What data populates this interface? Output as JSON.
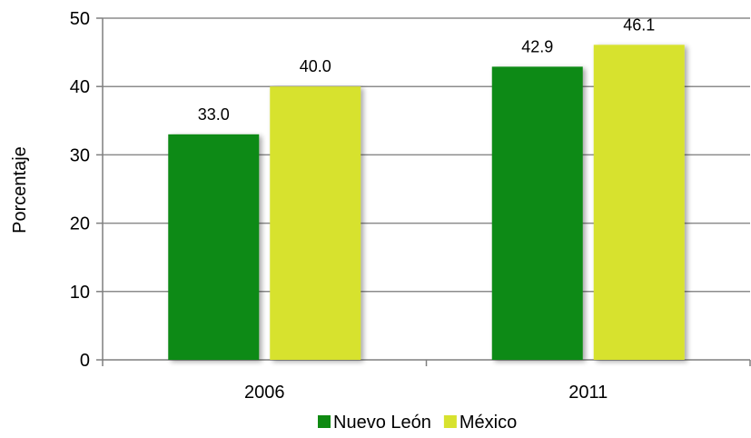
{
  "chart_data": {
    "type": "bar",
    "title": "",
    "xlabel": "",
    "ylabel": "Porcentaje",
    "categories": [
      "2006",
      "2011"
    ],
    "series": [
      {
        "name": "Nuevo León",
        "values": [
          33.0,
          42.9
        ],
        "labels": [
          "33.0",
          "42.9"
        ],
        "color": "#0f8a12"
      },
      {
        "name": "México",
        "values": [
          40.0,
          46.1
        ],
        "labels": [
          "40.0",
          "46.1"
        ],
        "color": "#d7e22e"
      }
    ],
    "ylim": [
      0,
      50
    ],
    "yticks": [
      0,
      10,
      20,
      30,
      40,
      50
    ],
    "grid": true,
    "legend_position": "bottom"
  }
}
